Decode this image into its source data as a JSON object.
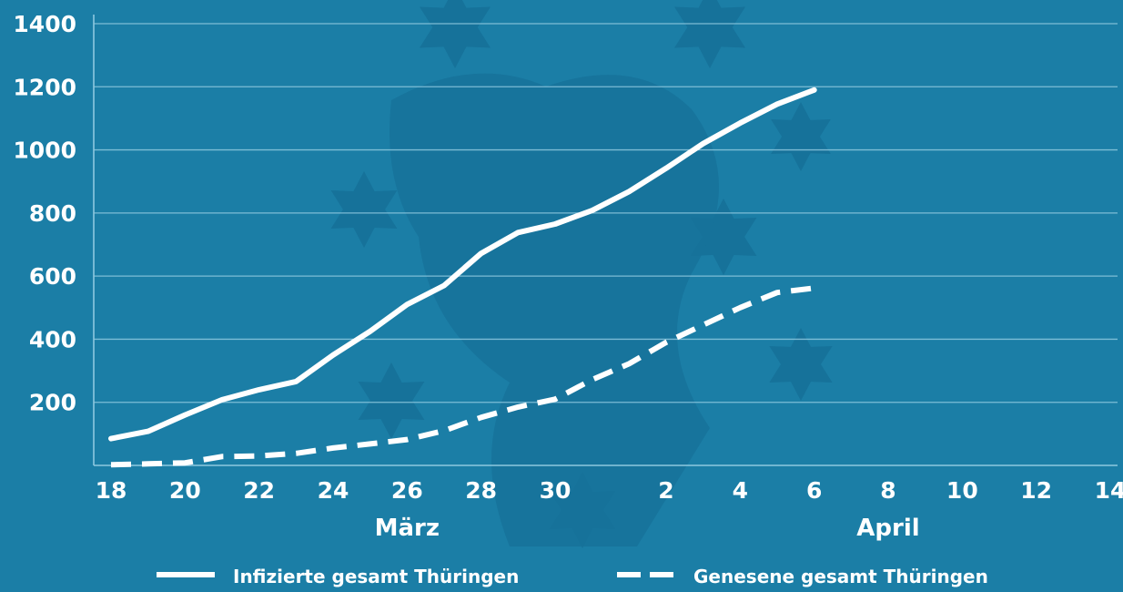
{
  "colors": {
    "background": "#1b7ea6",
    "watermark": "#16729a",
    "grid": "#8ec8df",
    "line": "#ffffff",
    "text": "#ffffff"
  },
  "chart_data": {
    "type": "line",
    "title": "",
    "xlabel": "",
    "ylabel": "",
    "ylim": [
      0,
      1400
    ],
    "yticks": [
      200,
      400,
      600,
      800,
      1000,
      1200,
      1400
    ],
    "ytick_labels": [
      "200",
      "400",
      "600",
      "800",
      "1000",
      "1200",
      "1400"
    ],
    "xlim": [
      "2020-03-18",
      "2020-04-14"
    ],
    "xticks": [
      {
        "date": "2020-03-18",
        "label": "18"
      },
      {
        "date": "2020-03-20",
        "label": "20"
      },
      {
        "date": "2020-03-22",
        "label": "22"
      },
      {
        "date": "2020-03-24",
        "label": "24"
      },
      {
        "date": "2020-03-26",
        "label": "26"
      },
      {
        "date": "2020-03-28",
        "label": "28"
      },
      {
        "date": "2020-03-30",
        "label": "30"
      },
      {
        "date": "2020-04-02",
        "label": "2"
      },
      {
        "date": "2020-04-04",
        "label": "4"
      },
      {
        "date": "2020-04-06",
        "label": "6"
      },
      {
        "date": "2020-04-08",
        "label": "8"
      },
      {
        "date": "2020-04-10",
        "label": "10"
      },
      {
        "date": "2020-04-12",
        "label": "12"
      },
      {
        "date": "2020-04-14",
        "label": "14"
      }
    ],
    "month_labels": [
      {
        "date": "2020-03-26",
        "label": "März"
      },
      {
        "date": "2020-04-08",
        "label": "April"
      }
    ],
    "grid": true,
    "legend_position": "bottom",
    "series": [
      {
        "name": "Infizierte gesamt Thüringen",
        "style": "solid",
        "points": [
          [
            "2020-03-18",
            85
          ],
          [
            "2020-03-19",
            108
          ],
          [
            "2020-03-20",
            160
          ],
          [
            "2020-03-21",
            208
          ],
          [
            "2020-03-22",
            240
          ],
          [
            "2020-03-23",
            266
          ],
          [
            "2020-03-24",
            350
          ],
          [
            "2020-03-25",
            425
          ],
          [
            "2020-03-26",
            510
          ],
          [
            "2020-03-27",
            570
          ],
          [
            "2020-03-28",
            672
          ],
          [
            "2020-03-29",
            738
          ],
          [
            "2020-03-30",
            765
          ],
          [
            "2020-03-31",
            808
          ],
          [
            "2020-04-01",
            868
          ],
          [
            "2020-04-02",
            942
          ],
          [
            "2020-04-03",
            1020
          ],
          [
            "2020-04-04",
            1085
          ],
          [
            "2020-04-05",
            1145
          ],
          [
            "2020-04-06",
            1190
          ]
        ]
      },
      {
        "name": "Genesene gesamt Thüringen",
        "style": "dashed",
        "points": [
          [
            "2020-03-18",
            2
          ],
          [
            "2020-03-19",
            5
          ],
          [
            "2020-03-20",
            8
          ],
          [
            "2020-03-21",
            28
          ],
          [
            "2020-03-22",
            30
          ],
          [
            "2020-03-23",
            38
          ],
          [
            "2020-03-24",
            55
          ],
          [
            "2020-03-25",
            68
          ],
          [
            "2020-03-26",
            82
          ],
          [
            "2020-03-27",
            110
          ],
          [
            "2020-03-28",
            152
          ],
          [
            "2020-03-29",
            185
          ],
          [
            "2020-03-30",
            210
          ],
          [
            "2020-03-31",
            272
          ],
          [
            "2020-04-01",
            322
          ],
          [
            "2020-04-02",
            390
          ],
          [
            "2020-04-03",
            445
          ],
          [
            "2020-04-04",
            500
          ],
          [
            "2020-04-05",
            548
          ],
          [
            "2020-04-06",
            562
          ]
        ]
      }
    ]
  }
}
